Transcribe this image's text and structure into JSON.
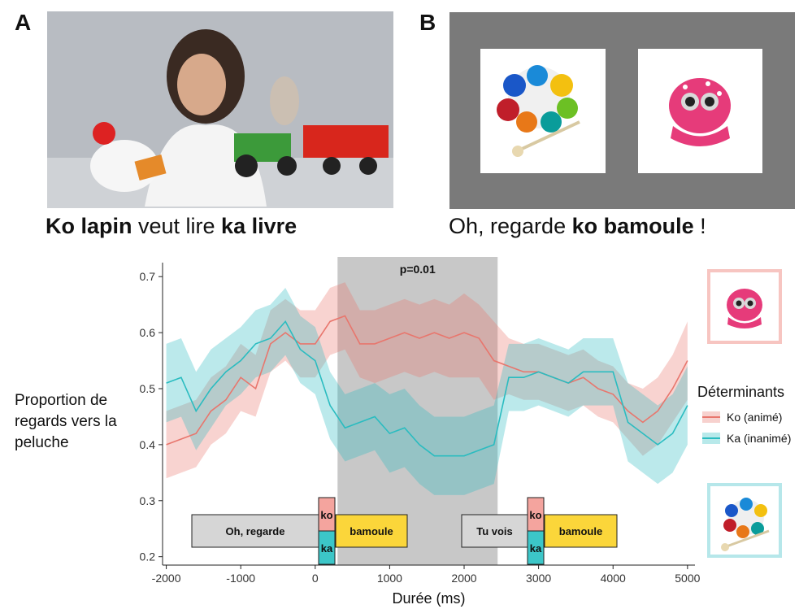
{
  "panel_a": {
    "letter": "A",
    "caption_parts": [
      {
        "text": "Ko lapin",
        "bold": true
      },
      {
        "text": " veut lire ",
        "bold": false
      },
      {
        "text": "ka livre",
        "bold": true
      }
    ]
  },
  "panel_b": {
    "letter": "B",
    "caption_parts": [
      {
        "text": "Oh, regarde ",
        "bold": false
      },
      {
        "text": "ko bamoule",
        "bold": true
      },
      {
        "text": " !",
        "bold": false
      }
    ]
  },
  "chart_data": {
    "type": "line",
    "xlabel": "Durée (ms)",
    "ylabel": "Proportion de regards vers la peluche",
    "xlim": [
      -2050,
      5100
    ],
    "ylim": [
      0.185,
      0.725
    ],
    "xticks": [
      -2000,
      -1000,
      0,
      1000,
      2000,
      3000,
      4000,
      5000
    ],
    "yticks": [
      0.2,
      0.3,
      0.4,
      0.5,
      0.6,
      0.7
    ],
    "grid": false,
    "legend": {
      "title": "Déterminants",
      "position": "right"
    },
    "highlight": {
      "x": [
        300,
        2450
      ],
      "label": "p=0.01"
    },
    "series": [
      {
        "name": "Ko (animé)",
        "color": "#e8766d",
        "x": [
          -2000,
          -1800,
          -1600,
          -1400,
          -1200,
          -1000,
          -800,
          -600,
          -400,
          -200,
          0,
          200,
          400,
          600,
          800,
          1000,
          1200,
          1400,
          1600,
          1800,
          2000,
          2200,
          2400,
          2600,
          2800,
          3000,
          3200,
          3400,
          3600,
          3800,
          4000,
          4200,
          4400,
          4600,
          4800,
          5000
        ],
        "y": [
          0.4,
          0.41,
          0.42,
          0.46,
          0.48,
          0.52,
          0.5,
          0.58,
          0.6,
          0.58,
          0.58,
          0.62,
          0.63,
          0.58,
          0.58,
          0.59,
          0.6,
          0.59,
          0.6,
          0.59,
          0.6,
          0.59,
          0.55,
          0.54,
          0.53,
          0.53,
          0.52,
          0.51,
          0.52,
          0.5,
          0.49,
          0.46,
          0.44,
          0.46,
          0.5,
          0.55
        ],
        "lower": [
          0.34,
          0.35,
          0.36,
          0.4,
          0.42,
          0.46,
          0.45,
          0.53,
          0.55,
          0.52,
          0.52,
          0.56,
          0.57,
          0.52,
          0.51,
          0.52,
          0.53,
          0.52,
          0.53,
          0.52,
          0.52,
          0.52,
          0.48,
          0.49,
          0.48,
          0.48,
          0.47,
          0.46,
          0.47,
          0.45,
          0.44,
          0.41,
          0.38,
          0.4,
          0.44,
          0.48
        ],
        "upper": [
          0.46,
          0.47,
          0.48,
          0.52,
          0.54,
          0.58,
          0.56,
          0.64,
          0.66,
          0.64,
          0.64,
          0.68,
          0.69,
          0.64,
          0.64,
          0.65,
          0.66,
          0.65,
          0.66,
          0.65,
          0.67,
          0.65,
          0.62,
          0.59,
          0.58,
          0.58,
          0.57,
          0.56,
          0.57,
          0.55,
          0.54,
          0.51,
          0.5,
          0.52,
          0.56,
          0.62
        ]
      },
      {
        "name": "Ka (inanimé)",
        "color": "#2abcc0",
        "x": [
          -2000,
          -1800,
          -1600,
          -1400,
          -1200,
          -1000,
          -800,
          -600,
          -400,
          -200,
          0,
          200,
          400,
          600,
          800,
          1000,
          1200,
          1400,
          1600,
          1800,
          2000,
          2200,
          2400,
          2600,
          2800,
          3000,
          3200,
          3400,
          3600,
          3800,
          4000,
          4200,
          4400,
          4600,
          4800,
          5000
        ],
        "y": [
          0.51,
          0.52,
          0.46,
          0.5,
          0.53,
          0.55,
          0.58,
          0.59,
          0.62,
          0.57,
          0.55,
          0.47,
          0.43,
          0.44,
          0.45,
          0.42,
          0.43,
          0.4,
          0.38,
          0.38,
          0.38,
          0.39,
          0.4,
          0.52,
          0.52,
          0.53,
          0.52,
          0.51,
          0.53,
          0.53,
          0.53,
          0.44,
          0.42,
          0.4,
          0.42,
          0.47
        ],
        "lower": [
          0.44,
          0.45,
          0.39,
          0.43,
          0.47,
          0.49,
          0.52,
          0.53,
          0.56,
          0.51,
          0.49,
          0.41,
          0.37,
          0.38,
          0.39,
          0.35,
          0.36,
          0.33,
          0.31,
          0.31,
          0.31,
          0.32,
          0.33,
          0.46,
          0.46,
          0.47,
          0.46,
          0.45,
          0.47,
          0.47,
          0.47,
          0.37,
          0.35,
          0.33,
          0.35,
          0.4
        ],
        "upper": [
          0.58,
          0.59,
          0.53,
          0.57,
          0.59,
          0.61,
          0.64,
          0.65,
          0.68,
          0.63,
          0.61,
          0.53,
          0.49,
          0.5,
          0.51,
          0.49,
          0.5,
          0.47,
          0.45,
          0.45,
          0.45,
          0.46,
          0.47,
          0.58,
          0.58,
          0.59,
          0.58,
          0.57,
          0.59,
          0.59,
          0.59,
          0.51,
          0.49,
          0.47,
          0.49,
          0.54
        ]
      }
    ],
    "annotations": {
      "sentence1": {
        "pre": "Oh, regarde",
        "det_top": "ko",
        "det_bottom": "ka",
        "noun": "bamoule"
      },
      "sentence2": {
        "pre": "Tu vois",
        "det_top": "ko",
        "det_bottom": "ka",
        "noun": "bamoule"
      }
    }
  },
  "colors": {
    "ko": "#f4a49e",
    "ka": "#3cc6c8",
    "noun_box": "#fbd63a",
    "pre_box": "#d6d6d6",
    "highlight": "#c8c8c8",
    "gray_panel": "#7a7a7a"
  }
}
